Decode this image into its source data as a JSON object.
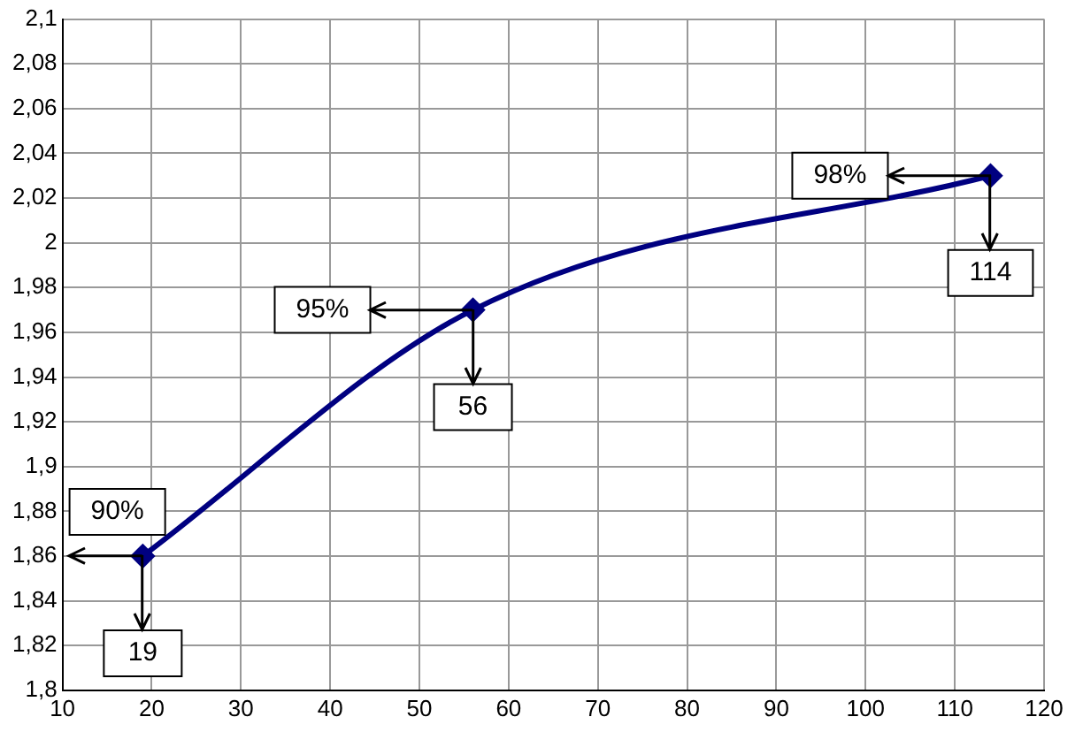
{
  "chart_data": {
    "type": "line",
    "x": [
      19,
      56,
      114
    ],
    "series": [
      {
        "color": "#000080",
        "values": [
          1.86,
          1.97,
          2.03
        ]
      }
    ],
    "xlim": [
      10,
      120
    ],
    "xticks": [
      10,
      20,
      30,
      40,
      50,
      60,
      70,
      80,
      90,
      100,
      110,
      120
    ],
    "ylim": [
      1.8,
      2.1
    ],
    "yticks": [
      {
        "value": 1.8,
        "label": "1,8"
      },
      {
        "value": 1.82,
        "label": "1,82"
      },
      {
        "value": 1.84,
        "label": "1,84"
      },
      {
        "value": 1.86,
        "label": "1,86"
      },
      {
        "value": 1.88,
        "label": "1,88"
      },
      {
        "value": 1.9,
        "label": "1,9"
      },
      {
        "value": 1.92,
        "label": "1,92"
      },
      {
        "value": 1.94,
        "label": "1,94"
      },
      {
        "value": 1.96,
        "label": "1,96"
      },
      {
        "value": 1.98,
        "label": "1,98"
      },
      {
        "value": 2,
        "label": "2"
      },
      {
        "value": 2.02,
        "label": "2,02"
      },
      {
        "value": 2.04,
        "label": "2,04"
      },
      {
        "value": 2.06,
        "label": "2,06"
      },
      {
        "value": 2.08,
        "label": "2,08"
      },
      {
        "value": 2.1,
        "label": "2,1"
      }
    ],
    "annotations": [
      {
        "text": "90%",
        "x": 19,
        "y": 1.86
      },
      {
        "text": "19",
        "x": 19,
        "y": 1.86
      },
      {
        "text": "95%",
        "x": 56,
        "y": 1.97
      },
      {
        "text": "56",
        "x": 56,
        "y": 1.97
      },
      {
        "text": "98%",
        "x": 114,
        "y": 2.03
      },
      {
        "text": "114",
        "x": 114,
        "y": 2.03
      }
    ],
    "grid": true,
    "legend": false,
    "marker": "diamond",
    "line_style": "solid"
  }
}
